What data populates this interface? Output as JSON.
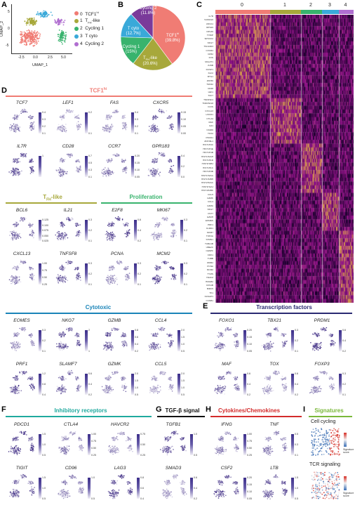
{
  "panel_labels": {
    "A": "A",
    "B": "B",
    "C": "C",
    "D": "D",
    "E": "E",
    "F": "F",
    "G": "G",
    "H": "H",
    "I": "I"
  },
  "panel_a": {
    "xlabel": "UMAP_1",
    "ylabel": "UMAP_2",
    "xticks": [
      "-2.5",
      "0.0",
      "2.5",
      "5.0"
    ],
    "yticks": [
      "5",
      "0",
      "-5"
    ],
    "cluster_numbers": [
      "0",
      "1",
      "2",
      "3",
      "4"
    ],
    "legend": [
      {
        "num": "0",
        "label": "TCF1hi",
        "main": "TCF1",
        "sup": "hi",
        "color": "#f07c74"
      },
      {
        "num": "1",
        "label": "TFH-like",
        "main": "T",
        "sub": "FH",
        "rest": "-like",
        "color": "#a7a83b"
      },
      {
        "num": "2",
        "label": "Cycling 1",
        "main": "Cycling 1",
        "color": "#38b36d"
      },
      {
        "num": "3",
        "label": "T cyto",
        "main": "T cyto",
        "color": "#3aa9d9"
      },
      {
        "num": "4",
        "label": "Cycling 2",
        "main": "Cycling 2",
        "color": "#b06ed0"
      }
    ]
  },
  "chart_data": {
    "type": "pie",
    "slices": [
      {
        "name": "TCF1hi",
        "value": 39.8,
        "color": "#f07c74",
        "line1": "TCF1",
        "sup": "hi",
        "line2": "(39.8%)"
      },
      {
        "name": "TFH-like",
        "value": 20.6,
        "color": "#a7a83b",
        "line1": "T",
        "sub": "FH",
        "rest": "-like",
        "line2": "(20.6%)"
      },
      {
        "name": "Cycling 1",
        "value": 15.0,
        "color": "#38b36d",
        "line1": "Cycling 1",
        "line2": "(15%)"
      },
      {
        "name": "T cyto",
        "value": 12.7,
        "color": "#3aa9d9",
        "line1": "T cyto",
        "line2": "(12.7%)"
      },
      {
        "name": "Cycling 2",
        "value": 11.8,
        "color": "#7a3a9a",
        "line1": "Cycling 2",
        "line2": "(11.8%)"
      }
    ]
  },
  "heatmap": {
    "cluster_labels": [
      "0",
      "1",
      "2",
      "3",
      "4"
    ],
    "cluster_colors": [
      "#f07c74",
      "#a7a83b",
      "#38b36d",
      "#3aa9d9",
      "#b06ed0"
    ],
    "genes": [
      "IL7R",
      "S100A10",
      "ANXA1",
      "RPS29",
      "RPL36",
      "TXNIP",
      "SPOCK2",
      "NKG7",
      "TSC22D3",
      "CXCR4",
      "CD52",
      "FOS",
      "MALAT1",
      "JUNB",
      "DUSP1",
      "KLF2",
      "BTG1",
      "ZFP36",
      "TSHZ2",
      "CD28",
      "LEF1",
      "TCF7",
      "TNFRSF4",
      "TNFRSF18",
      "ICOS",
      "CXCL13",
      "LINC01",
      "CTLA4",
      "MAF",
      "IL21",
      "CD200",
      "TOX2",
      "PDCD1",
      "ZFP36L1",
      "HIST1H4C",
      "HIST1H1E",
      "HIST1H1B",
      "HIST1H2AH",
      "HIST1H1D",
      "HIST1H2BJ",
      "HIST1H1C",
      "HIST1H3B",
      "HIST1H2AG",
      "HIST1H2BH",
      "HIST2H2AC",
      "HIST1H2AJ",
      "HIST1H2BK",
      "CCL5",
      "GZMK",
      "CCL4",
      "GZMA",
      "NKG7",
      "CST7",
      "GZMH",
      "EOMES",
      "PRF1",
      "KLRD1",
      "MKI67",
      "TOP2A",
      "STMN1",
      "TUBA1B",
      "UBE2C",
      "CENPF",
      "CDK1",
      "TUBB",
      "RRM2",
      "PCNA",
      "MCM2",
      "TYMS",
      "H2AFZ",
      "HMGB2",
      "CKS1B",
      "BIRC5",
      "TK1",
      "NUSAP1",
      "CCNB1"
    ]
  },
  "panel_d": {
    "header": "TCF1hi",
    "header_main": "TCF1",
    "header_sup": "hi",
    "genes": [
      {
        "name": "TCF7",
        "ticks": [
          "0.4",
          "0.3",
          "0.2",
          "0.1"
        ]
      },
      {
        "name": "LEF1",
        "ticks": [
          "0.2",
          "0.1"
        ]
      },
      {
        "name": "FAS",
        "ticks": [
          "0.4",
          "0.3",
          "0.2",
          "0.1"
        ]
      },
      {
        "name": "CXCR5",
        "ticks": [
          "0.15",
          "0.10",
          "0.05",
          "0.00"
        ]
      },
      {
        "name": "IL7R",
        "ticks": [
          "1"
        ]
      },
      {
        "name": "CD28",
        "ticks": [
          "0.7",
          "0.5",
          "0.3",
          "0.1"
        ]
      },
      {
        "name": "CCR7",
        "ticks": [
          "0.20",
          "0.15",
          "0.10",
          "0.05"
        ]
      },
      {
        "name": "GPR183",
        "ticks": [
          "0.4",
          "0.2",
          "0.0"
        ]
      }
    ]
  },
  "panel_tfh": {
    "header": "TFH-like",
    "header_main": "T",
    "header_sub": "FH",
    "header_rest": "-like",
    "genes": [
      {
        "name": "BCL6",
        "ticks": [
          "0.125",
          "0.100",
          "0.075",
          "0.050",
          "0.025"
        ]
      },
      {
        "name": "IL21",
        "ticks": [
          "0.3",
          "0.2",
          "0.1"
        ]
      },
      {
        "name": "CXCL13",
        "ticks": [
          "1.00",
          "0.75",
          "0.50",
          "0.25"
        ]
      },
      {
        "name": "TNFSF8",
        "ticks": [
          "0.3",
          "0.2",
          "0.1"
        ]
      }
    ]
  },
  "panel_prolif": {
    "header": "Proliferation",
    "genes": [
      {
        "name": "E2F8",
        "ticks": [
          "0.6",
          "0.4",
          "0.2"
        ]
      },
      {
        "name": "MKI67",
        "ticks": [
          "0.3",
          "0.2",
          "0.1"
        ]
      },
      {
        "name": "PCNA",
        "ticks": [
          "0.3",
          "0.2",
          "0.1"
        ]
      },
      {
        "name": "MCM2",
        "ticks": [
          "0.3",
          "0.2",
          "0.1"
        ]
      }
    ]
  },
  "panel_cyto": {
    "header": "Cytotoxic",
    "genes": [
      {
        "name": "EOMES",
        "ticks": [
          "0.3",
          "0.2",
          "0.1"
        ]
      },
      {
        "name": "NKG7",
        "ticks": [
          "2",
          "1"
        ]
      },
      {
        "name": "GZMB",
        "ticks": [
          "0.8",
          "0.6",
          "0.4",
          "0.2"
        ]
      },
      {
        "name": "CCL4",
        "ticks": [
          "2.0",
          "1.5",
          "1.0",
          "0.5"
        ]
      },
      {
        "name": "PRF1",
        "ticks": [
          "1.2",
          "0.8",
          "0.4"
        ]
      },
      {
        "name": "SLAMF7",
        "ticks": [
          "0.6",
          "0.4",
          "0.2"
        ]
      },
      {
        "name": "GZMK",
        "ticks": [
          "2.0",
          "1.5",
          "1.0",
          "0.5"
        ]
      },
      {
        "name": "CCL5",
        "ticks": [
          "2.0",
          "1.5",
          "1.0",
          "0.5"
        ]
      }
    ]
  },
  "panel_e": {
    "header": "Transcription factors",
    "genes": [
      {
        "name": "FOXO1",
        "ticks": [
          "0.20",
          "0.15",
          "0.10",
          "0.05"
        ]
      },
      {
        "name": "TBX21",
        "ticks": [
          "0.3",
          "0.2",
          "0.1"
        ]
      },
      {
        "name": "PRDM1",
        "ticks": [
          "0.6",
          "0.4",
          "0.2"
        ]
      },
      {
        "name": "MAF",
        "ticks": [
          "0.6",
          "0.4",
          "0.2"
        ]
      },
      {
        "name": "TOX",
        "ticks": [
          "0.6",
          "0.4",
          "0.2"
        ]
      },
      {
        "name": "FOXP3",
        "ticks": [
          "0.3",
          "0.2",
          "0.1"
        ]
      }
    ]
  },
  "panel_f": {
    "header": "Inhibitory receptors",
    "genes": [
      {
        "name": "PDCD1",
        "ticks": [
          "1.5",
          "1.0",
          "0.5"
        ]
      },
      {
        "name": "CTLA4",
        "ticks": [
          "1.00",
          "0.75",
          "0.50",
          "0.25"
        ]
      },
      {
        "name": "HAVCR2",
        "ticks": [
          "0.75",
          "0.50",
          "0.25"
        ]
      },
      {
        "name": "TIGIT",
        "ticks": [
          "1.5",
          "1.0",
          "0.5"
        ]
      },
      {
        "name": "CD96",
        "ticks": [
          "1.0",
          "0.5"
        ]
      },
      {
        "name": "LAG3",
        "ticks": [
          "0.8",
          "0.6",
          "0.4"
        ]
      }
    ]
  },
  "panel_g": {
    "header": "TGF-β signal",
    "genes": [
      {
        "name": "TGFB1",
        "ticks": [
          "1.0",
          "0.5"
        ]
      },
      {
        "name": "SMAD3",
        "ticks": [
          "0.6",
          "0.4",
          "0.2"
        ]
      }
    ]
  },
  "panel_h": {
    "header": "Cytokines/Chemokines",
    "genes": [
      {
        "name": "IFNG",
        "ticks": [
          "1.00",
          "0.75",
          "0.50",
          "0.25"
        ]
      },
      {
        "name": "TNF",
        "ticks": [
          "0.5",
          "0.3",
          "0.1"
        ]
      },
      {
        "name": "CSF2",
        "ticks": [
          "0.20",
          "0.15",
          "0.10",
          "0.05"
        ]
      },
      {
        "name": "LTB",
        "ticks": [
          "1.5",
          "1.0",
          "0.5"
        ]
      }
    ]
  },
  "panel_i": {
    "header": "Signatures",
    "items": [
      {
        "title": "Cell cycling",
        "legend": "Signature score"
      },
      {
        "title": "TCR signaling",
        "legend": "Signature score"
      }
    ]
  }
}
